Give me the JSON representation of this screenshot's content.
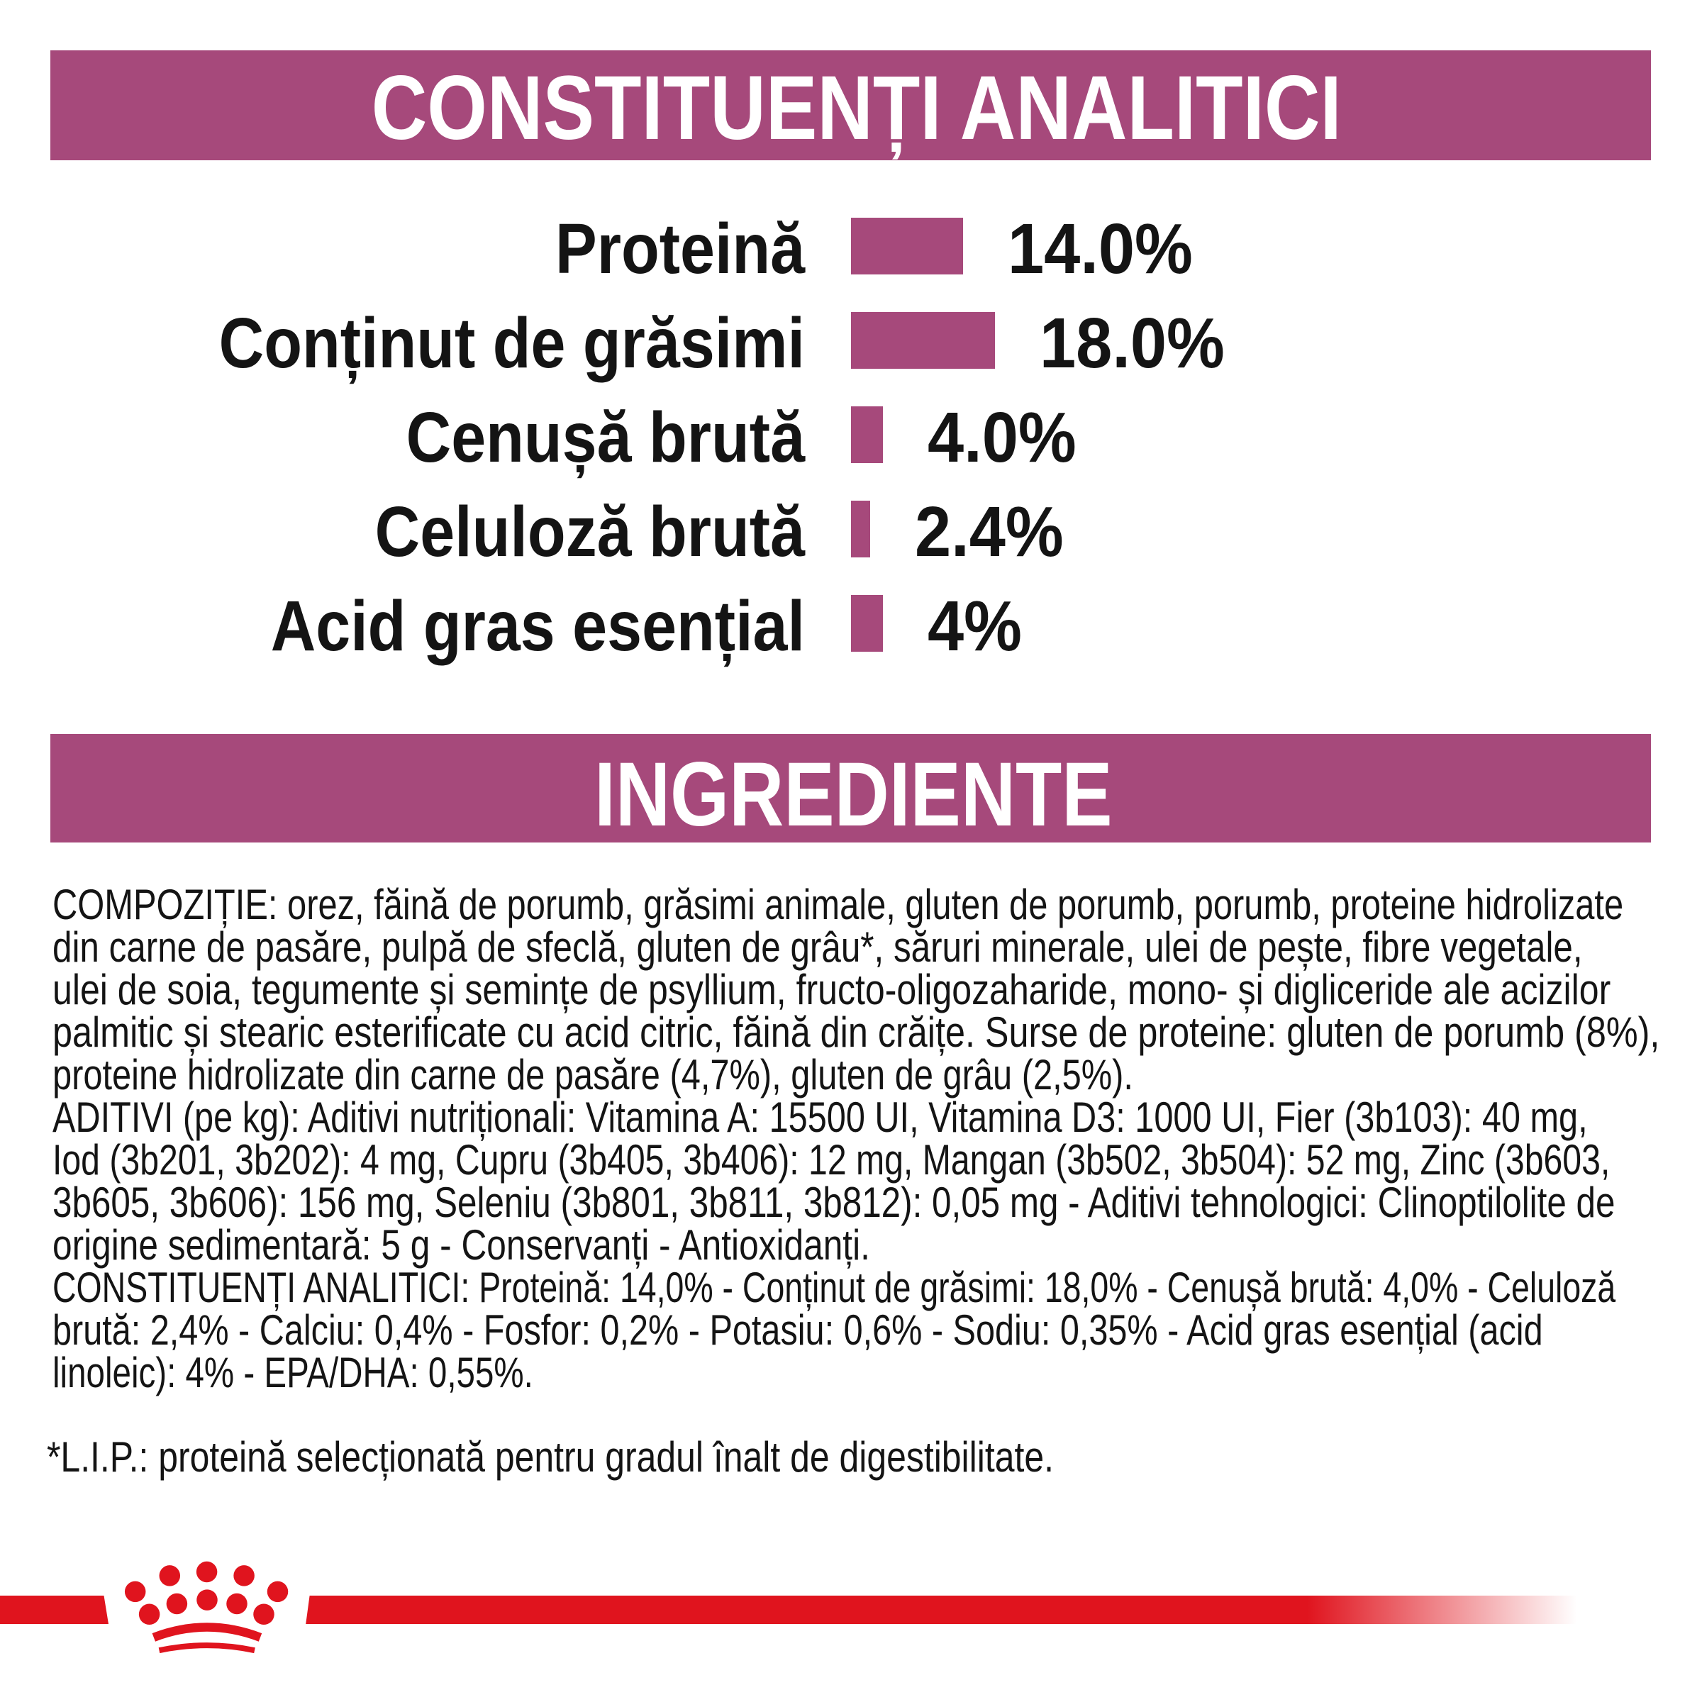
{
  "colors": {
    "plum": "#A6497B",
    "red": "#E0141E",
    "ink": "#141414",
    "white": "#FFFFFF"
  },
  "banners": {
    "analytical": "CONSTITUENȚI ANALITICI",
    "ingredients": "INGREDIENTE"
  },
  "chart_data": {
    "type": "bar",
    "orientation": "horizontal",
    "title": "CONSTITUENȚI ANALITICI",
    "unit": "%",
    "categories": [
      "Proteină",
      "Conținut de grăsimi",
      "Cenușă brută",
      "Celuloză brută",
      "Acid gras esențial"
    ],
    "values": [
      14.0,
      18.0,
      4.0,
      2.4,
      4
    ],
    "value_labels": [
      "14.0%",
      "18.0%",
      "4.0%",
      "2.4%",
      "4%"
    ],
    "bar_color": "#A6497B",
    "xlim": [
      0,
      100
    ],
    "grid": false,
    "legend": false
  },
  "ingredients_text": {
    "lines": [
      "COMPOZIȚIE: orez, făină de porumb, grăsimi animale, gluten de porumb, porumb, proteine hidrolizate",
      "din carne de pasăre, pulpă de sfeclă, gluten de grâu*, săruri minerale, ulei de pește, fibre vegetale,",
      "ulei de soia, tegumente și semințe de psyllium, fructo-oligozaharide, mono- și digliceride ale acizilor",
      "palmitic și stearic esterificate cu acid citric, făină din crăițe. Surse de proteine: gluten de porumb (8%),",
      "proteine hidrolizate din carne de pasăre (4,7%), gluten de grâu (2,5%).",
      "ADITIVI (pe kg): Aditivi nutriționali: Vitamina A: 15500 UI, Vitamina D3: 1000 UI, Fier (3b103): 40 mg,",
      "Iod (3b201, 3b202): 4 mg, Cupru (3b405, 3b406): 12 mg, Mangan (3b502, 3b504): 52 mg, Zinc (3b603,",
      "3b605, 3b606): 156 mg, Seleniu (3b801, 3b811, 3b812): 0,05 mg - Aditivi tehnologici: Clinoptilolite de",
      "origine sedimentară: 5 g - Conservanți - Antioxidanți.",
      "CONSTITUENȚI ANALITICI: Proteină: 14,0% - Conținut de grăsimi: 18,0% - Cenușă brută: 4,0% - Celuloză",
      "brută: 2,4% - Calciu: 0,4% - Fosfor: 0,2% - Potasiu: 0,6% - Sodiu: 0,35% - Acid gras esențial (acid",
      "linoleic): 4% - EPA/DHA: 0,55%."
    ]
  },
  "footnote": "*L.I.P.: proteină selecționată pentru gradul înalt de digestibilitate.",
  "logo": {
    "name": "royal-canin-crown",
    "color": "#E0141E"
  }
}
